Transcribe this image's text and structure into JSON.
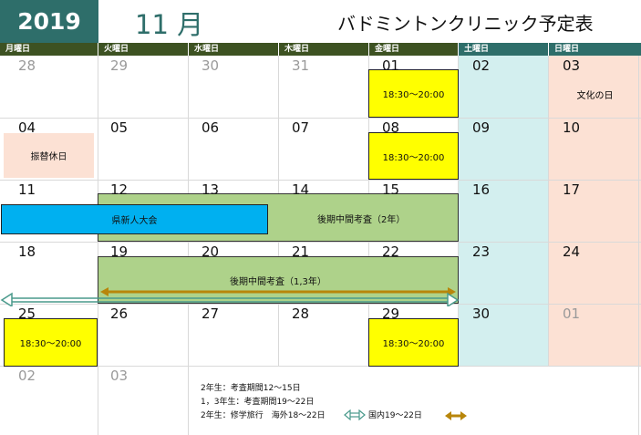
{
  "header": {
    "year": "2019",
    "month": "11 月",
    "title": "バドミントンクリニック予定表"
  },
  "weekdays": [
    "月曜日",
    "火曜日",
    "水曜日",
    "木曜日",
    "金曜日",
    "土曜日",
    "日曜日"
  ],
  "weeks": [
    [
      "28",
      "29",
      "30",
      "31",
      "01",
      "02",
      "03"
    ],
    [
      "04",
      "05",
      "06",
      "07",
      "08",
      "09",
      "10"
    ],
    [
      "11",
      "12",
      "13",
      "14",
      "15",
      "16",
      "17"
    ],
    [
      "18",
      "19",
      "20",
      "21",
      "22",
      "23",
      "24"
    ],
    [
      "25",
      "26",
      "27",
      "28",
      "29",
      "30",
      "01"
    ],
    [
      "02",
      "03"
    ]
  ],
  "events": {
    "clinic_time": "18:30～20:00",
    "culture_day": "文化の日",
    "substitute_holiday": "振替休日",
    "prefectural_meet": "県新人大会",
    "exam_2nd_year": "後期中間考査（2年）",
    "exam_1st_3rd_year": "後期中間考査（1,3年）"
  },
  "notes": {
    "line1": "2年生：考査期間12～15日",
    "line2": "1，3年生：考査期間19～22日",
    "line3": "2年生：修学旅行　海外18～22日",
    "domestic": "国内19～22日"
  },
  "colors": {
    "year_bg": "#2e6e6a",
    "weekday_header": "#3d5222",
    "weekend_header": "#2e6e6a",
    "saturday_bg": "#d3efef",
    "sunday_bg": "#fce1d4",
    "clinic": "#ffff00",
    "exam": "#aed28a",
    "meet": "#00b0f0",
    "overseas_arrow": "#4a9a8c",
    "domestic_arrow": "#b8860b"
  }
}
